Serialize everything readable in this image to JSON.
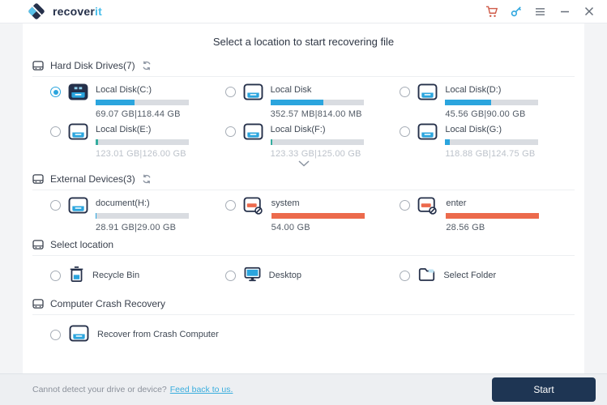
{
  "header": {
    "brand": "recover",
    "brand_accent": "it",
    "icons": [
      {
        "name": "cart-icon",
        "color": "#cf5b49"
      },
      {
        "name": "key-icon",
        "color": "#2ba5de"
      },
      {
        "name": "menu-icon",
        "color": "#666e79"
      },
      {
        "name": "minimize-icon",
        "color": "#666e79"
      },
      {
        "name": "close-icon",
        "color": "#666e79"
      }
    ]
  },
  "page_title": "Select a location to start recovering file",
  "colors": {
    "accent_blue": "#2ba5de",
    "navy": "#25304a",
    "bar_track": "#d9dce1",
    "bar_red": "#ec6a4c",
    "bar_teal": "#35ad9f",
    "start_button": "#1e3553"
  },
  "sections": [
    {
      "title": "Hard Disk Drives(7)",
      "refresh": true,
      "layout": "drive-grid",
      "expander": true,
      "items": [
        {
          "name": "Local Disk(C:)",
          "size": "69.07 GB|118.44 GB",
          "fill": 42,
          "fill_color": "#2ba5de",
          "selected": true,
          "dimmed": false,
          "icon": "drive-filled"
        },
        {
          "name": "Local Disk",
          "size": "352.57 MB|814.00 MB",
          "fill": 57,
          "fill_color": "#2ba5de",
          "selected": false,
          "dimmed": false,
          "icon": "drive"
        },
        {
          "name": "Local Disk(D:)",
          "size": "45.56 GB|90.00 GB",
          "fill": 49,
          "fill_color": "#2ba5de",
          "selected": false,
          "dimmed": false,
          "icon": "drive"
        },
        {
          "name": "Local Disk(E:)",
          "size": "123.01 GB|126.00 GB",
          "fill": 3,
          "fill_color": "#35ad9f",
          "selected": false,
          "dimmed": true,
          "icon": "drive"
        },
        {
          "name": "Local Disk(F:)",
          "size": "123.33 GB|125.00 GB",
          "fill": 2,
          "fill_color": "#35ad9f",
          "selected": false,
          "dimmed": true,
          "icon": "drive"
        },
        {
          "name": "Local Disk(G:)",
          "size": "118.88 GB|124.75 GB",
          "fill": 5,
          "fill_color": "#2ba5de",
          "selected": false,
          "dimmed": true,
          "icon": "drive"
        }
      ]
    },
    {
      "title": "External Devices(3)",
      "refresh": true,
      "layout": "drive-grid",
      "expander": false,
      "items": [
        {
          "name": "document(H:)",
          "size": "28.91 GB|29.00 GB",
          "fill": 1,
          "fill_color": "#2ba5de",
          "selected": false,
          "dimmed": false,
          "icon": "drive"
        },
        {
          "name": "system",
          "size": "54.00 GB",
          "fill": 100,
          "fill_color": "#ec6a4c",
          "selected": false,
          "dimmed": false,
          "icon": "drive-error"
        },
        {
          "name": "enter",
          "size": "28.56 GB",
          "fill": 100,
          "fill_color": "#ec6a4c",
          "selected": false,
          "dimmed": false,
          "icon": "drive-error"
        }
      ]
    },
    {
      "title": "Select location",
      "refresh": false,
      "layout": "location-grid",
      "expander": false,
      "items": [
        {
          "name": "Recycle Bin",
          "icon": "recycle-bin"
        },
        {
          "name": "Desktop",
          "icon": "desktop"
        },
        {
          "name": "Select Folder",
          "icon": "folder"
        }
      ]
    },
    {
      "title": "Computer Crash Recovery",
      "refresh": false,
      "layout": "location-grid",
      "expander": false,
      "items": [
        {
          "name": "Recover from Crash Computer",
          "icon": "drive"
        }
      ]
    }
  ],
  "footer": {
    "hint": "Cannot detect your drive or device?",
    "link": "Feed back to us.",
    "start_label": "Start"
  }
}
